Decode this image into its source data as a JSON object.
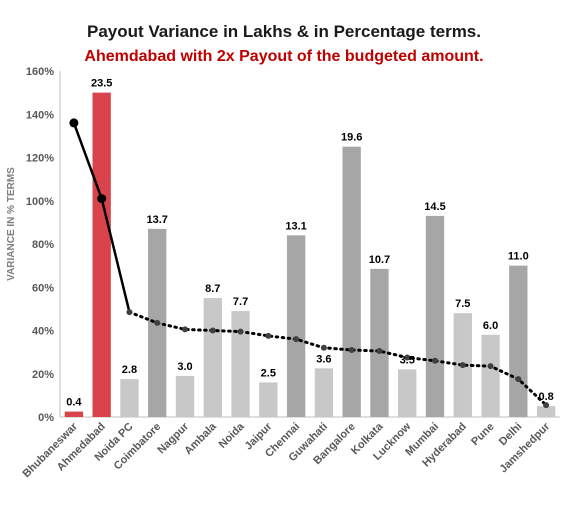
{
  "chart_data": {
    "type": "bar",
    "title": "Payout Variance in Lakhs & in Percentage terms.",
    "subtitle": "Ahemdabad with 2x Payout of the budgeted amount.",
    "xlabel": "",
    "ylabel": "VARIANCE IN % TERMS",
    "ylim": [
      0,
      160
    ],
    "y_ticks": [
      "0%",
      "20%",
      "40%",
      "60%",
      "80%",
      "100%",
      "120%",
      "140%",
      "160%"
    ],
    "grid": false,
    "categories": [
      "Bhubaneswar",
      "Ahmedabad",
      "Noida PC",
      "Coimbatore",
      "Nagpur",
      "Ambala",
      "Noida",
      "Jaipur",
      "Chennai",
      "Guwahati",
      "Bangalore",
      "Kolkata",
      "Lucknow",
      "Mumbai",
      "Hyderabad",
      "Pune",
      "Delhi",
      "Jamshedpur"
    ],
    "series": [
      {
        "values": [
          2.5,
          150,
          17.5,
          87,
          19,
          55,
          49,
          16,
          84,
          22.5,
          125,
          68.5,
          22,
          93,
          48,
          38,
          70,
          5
        ],
        "data_labels": [
          "0.4",
          "23.5",
          "2.8",
          "13.7",
          "3.0",
          "8.7",
          "7.7",
          "2.5",
          "13.1",
          "3.6",
          "19.6",
          "10.7",
          "3.5",
          "14.5",
          "7.5",
          "6.0",
          "11.0",
          "0.8"
        ]
      },
      {
        "type": "line",
        "values": [
          136,
          101,
          48.5,
          43.5,
          40.5,
          40,
          39.5,
          37.5,
          36,
          32,
          31,
          30.5,
          27.5,
          26,
          24,
          23.5,
          17.5,
          5.5
        ]
      }
    ],
    "colors": {
      "highlight": "#d9434b",
      "dark_bar": "#a6a6a6",
      "light_bar": "#c8c8c8",
      "line": "#000000"
    },
    "bar_color_keys": [
      "highlight",
      "highlight",
      "light_bar",
      "dark_bar",
      "light_bar",
      "light_bar",
      "light_bar",
      "light_bar",
      "dark_bar",
      "light_bar",
      "dark_bar",
      "dark_bar",
      "light_bar",
      "dark_bar",
      "light_bar",
      "light_bar",
      "dark_bar",
      "light_bar"
    ],
    "line_solid_until_index": 2
  }
}
